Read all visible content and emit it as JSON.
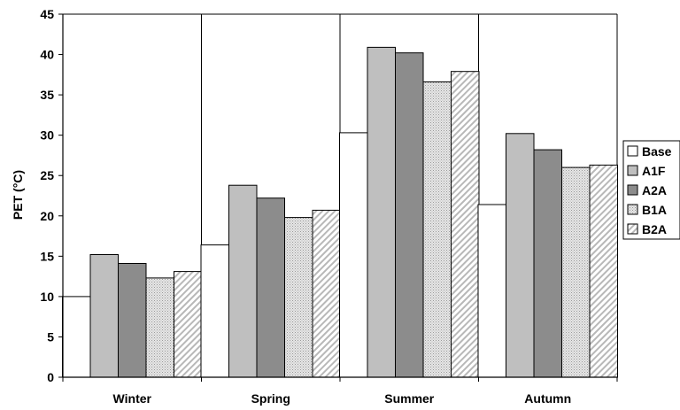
{
  "chart_data": {
    "type": "bar",
    "title": "",
    "xlabel": "",
    "ylabel": "PET (°C)",
    "categories": [
      "Winter",
      "Spring",
      "Summer",
      "Autumn"
    ],
    "ylim": [
      0,
      45
    ],
    "yticks": [
      "0",
      "5",
      "10",
      "15",
      "20",
      "25",
      "30",
      "35",
      "40",
      "45"
    ],
    "grid": "vertical lines between categories",
    "legend_position": "right",
    "series": [
      {
        "name": "Base",
        "values": [
          10.0,
          16.4,
          30.3,
          21.4
        ],
        "color": "#ffffff",
        "pattern": "none"
      },
      {
        "name": "A1F",
        "values": [
          15.2,
          23.8,
          40.9,
          30.2
        ],
        "color": "#bfbfbf",
        "pattern": "none"
      },
      {
        "name": "A2A",
        "values": [
          14.1,
          22.2,
          40.2,
          28.2
        ],
        "color": "#8c8c8c",
        "pattern": "none"
      },
      {
        "name": "B1A",
        "values": [
          12.3,
          19.8,
          36.6,
          26.0
        ],
        "color": "#d9d9d9",
        "pattern": "dots"
      },
      {
        "name": "B2A",
        "values": [
          13.1,
          20.7,
          37.9,
          26.3
        ],
        "color": "#ebebeb",
        "pattern": "diagonal"
      }
    ]
  }
}
